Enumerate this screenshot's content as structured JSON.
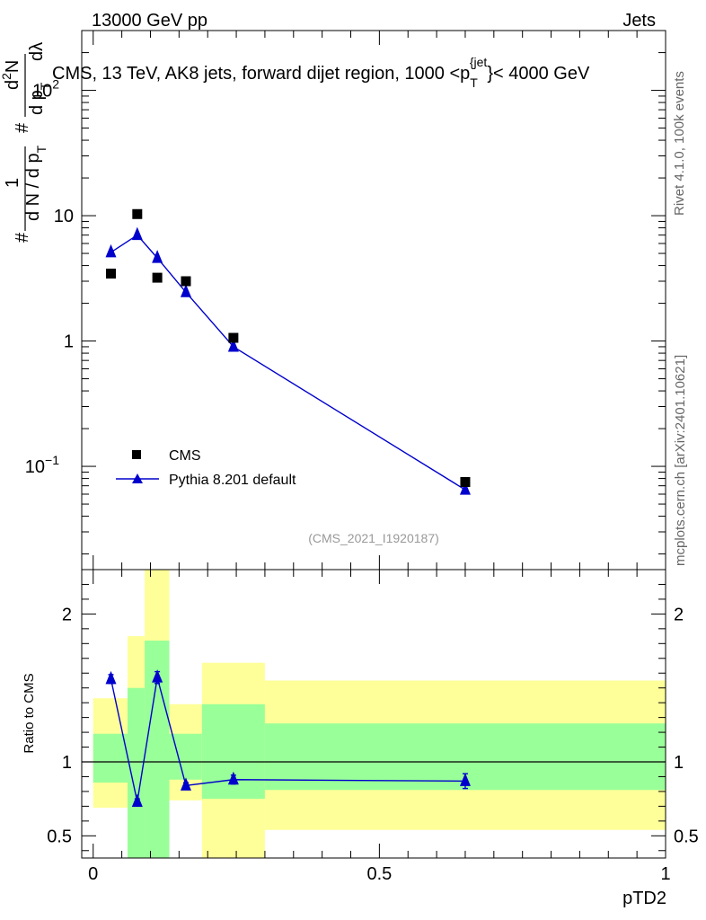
{
  "header": {
    "left": "13000 GeV pp",
    "right": "Jets"
  },
  "side_labels": {
    "rivet": "Rivet 4.1.0,  100k events",
    "mcplots": "mcplots.cern.ch [arXiv:2401.10621]"
  },
  "colors": {
    "data": "#000000",
    "mc": "#0000cc",
    "band_inner": "#99ff99",
    "band_outer": "#ffff99",
    "watermark": "#999999"
  },
  "chart_data": [
    {
      "type": "scatter",
      "title": "CMS, 13 TeV, AK8 jets, forward dijet region, 1000 <p_T^{jet}< 4000 GeV",
      "title_parts": {
        "main": "CMS, 13 TeV, AK8 jets, forward dijet region, 1000 <p",
        "sub": "T",
        "sup": "{jet",
        "tail": "}< 4000 GeV"
      },
      "ylabel": "(1/N) d^2N / (dp_T dλ)",
      "ylabel_parts": {
        "a": "#",
        "b": "1",
        "c": "d N / d p",
        "c_sub": "T",
        "d": "#",
        "e": "d p",
        "e_sub": "T",
        "f": "d",
        "f_sup": "2",
        "g": "N",
        "h": "d",
        "i": "λ"
      },
      "yscale": "log",
      "ylim": [
        0.015,
        300
      ],
      "xlim": [
        -0.02,
        1.0
      ],
      "yticks": [
        {
          "value": 100,
          "label": "10",
          "exp": "2"
        },
        {
          "value": 10,
          "label": "10",
          "exp": ""
        },
        {
          "value": 1,
          "label": "1",
          "exp": ""
        },
        {
          "value": 0.1,
          "label": "10",
          "exp": "−1"
        }
      ],
      "watermark": "(CMS_2021_I1920187)",
      "legend": {
        "position": "bottom-left",
        "entries": [
          "CMS",
          "Pythia 8.201 default"
        ]
      },
      "series": [
        {
          "name": "CMS",
          "marker": "square",
          "points": [
            {
              "x": 0.031,
              "y": 3.45
            },
            {
              "x": 0.077,
              "y": 10.3
            },
            {
              "x": 0.112,
              "y": 3.2
            },
            {
              "x": 0.162,
              "y": 3.0
            },
            {
              "x": 0.245,
              "y": 1.06
            },
            {
              "x": 0.65,
              "y": 0.075
            }
          ]
        },
        {
          "name": "Pythia 8.201 default",
          "marker": "triangle",
          "points": [
            {
              "x": 0.031,
              "y": 5.1
            },
            {
              "x": 0.077,
              "y": 7.0
            },
            {
              "x": 0.112,
              "y": 4.6
            },
            {
              "x": 0.162,
              "y": 2.45
            },
            {
              "x": 0.245,
              "y": 0.9
            },
            {
              "x": 0.65,
              "y": 0.065
            }
          ]
        }
      ]
    },
    {
      "type": "line",
      "title": "",
      "ylabel": "Ratio to CMS",
      "xlabel": "pTD2",
      "ylim": [
        0.35,
        2.3
      ],
      "xlim": [
        -0.02,
        1.0
      ],
      "yticks": [
        {
          "value": 0.5,
          "label": "0.5"
        },
        {
          "value": 1,
          "label": "1"
        },
        {
          "value": 2,
          "label": "2"
        }
      ],
      "xticks": [
        {
          "value": 0,
          "label": "0"
        },
        {
          "value": 0.5,
          "label": "0.5"
        },
        {
          "value": 1,
          "label": "1"
        }
      ],
      "reference_line": 1,
      "bands": [
        {
          "x0": 0.0,
          "x1": 0.06,
          "inner": [
            0.86,
            1.19
          ],
          "outer": [
            0.69,
            1.43
          ]
        },
        {
          "x0": 0.06,
          "x1": 0.09,
          "inner": [
            0.35,
            1.5
          ],
          "outer": [
            0.35,
            1.85
          ]
        },
        {
          "x0": 0.09,
          "x1": 0.133,
          "inner": [
            0.35,
            1.82
          ],
          "outer": [
            0.35,
            2.3
          ]
        },
        {
          "x0": 0.133,
          "x1": 0.19,
          "inner": [
            0.88,
            1.19
          ],
          "outer": [
            0.74,
            1.39
          ]
        },
        {
          "x0": 0.19,
          "x1": 0.3,
          "inner": [
            0.75,
            1.39
          ],
          "outer": [
            0.35,
            1.67
          ]
        },
        {
          "x0": 0.3,
          "x1": 1.0,
          "inner": [
            0.81,
            1.26
          ],
          "outer": [
            0.54,
            1.55
          ]
        }
      ],
      "series": [
        {
          "name": "Pythia 8.201 default",
          "marker": "triangle",
          "points": [
            {
              "x": 0.031,
              "y": 1.56,
              "err": 0.03
            },
            {
              "x": 0.077,
              "y": 0.73,
              "err": 0.02
            },
            {
              "x": 0.112,
              "y": 1.57,
              "err": 0.04
            },
            {
              "x": 0.162,
              "y": 0.84,
              "err": 0.02
            },
            {
              "x": 0.245,
              "y": 0.88,
              "err": 0.03
            },
            {
              "x": 0.65,
              "y": 0.87,
              "err": 0.05
            }
          ]
        }
      ]
    }
  ]
}
